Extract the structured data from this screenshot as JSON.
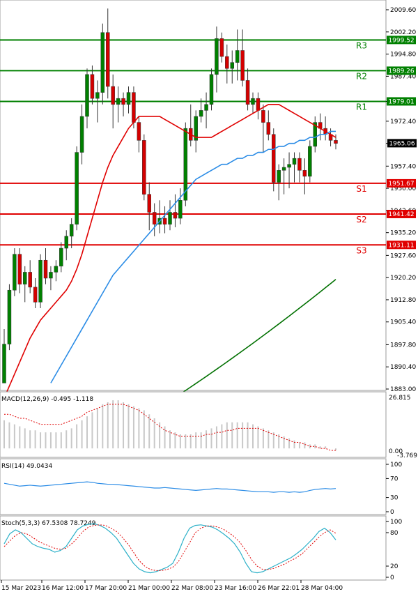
{
  "colors": {
    "bull": "#008000",
    "bear": "#d40000",
    "sma_fast": "#e00000",
    "sma_mid": "#2b8ce6",
    "sma_slow": "#007000",
    "resistance": "#008000",
    "support": "#e00000",
    "macd_hist": "#c8c8c8",
    "macd_signal": "#e00000",
    "rsi_line": "#2b8ce6",
    "stoch_k": "#2bb0c8",
    "stoch_d": "#e00000"
  },
  "chart_data": {
    "type": "candlestick",
    "instrument_price": "1965.06",
    "x_tick_labels": [
      "15 Mar 2023",
      "16 Mar 12:00",
      "17 Mar 20:00",
      "21 Mar 00:00",
      "22 Mar 08:00",
      "23 Mar 16:00",
      "26 Mar 22:01",
      "28 Mar 04:00"
    ],
    "y_ticks": [
      "2009.60",
      "2002.20",
      "1994.80",
      "1987.40",
      "1979.00",
      "1972.40",
      "1965.00",
      "1957.40",
      "1950.00",
      "1942.60",
      "1935.20",
      "1927.60",
      "1920.20",
      "1912.80",
      "1905.40",
      "1897.80",
      "1890.40",
      "1883.00"
    ],
    "ylim": [
      1883.0,
      2011.5
    ],
    "levels": [
      {
        "name": "R3",
        "value": 1999.52,
        "label": "1999.52",
        "kind": "resistance"
      },
      {
        "name": "R2",
        "value": 1989.26,
        "label": "1989.26",
        "kind": "resistance"
      },
      {
        "name": "R1",
        "value": 1979.01,
        "label": "1979.01",
        "kind": "resistance"
      },
      {
        "name": "S1",
        "value": 1951.67,
        "label": "1951.67",
        "kind": "support"
      },
      {
        "name": "S2",
        "value": 1941.42,
        "label": "1941.42",
        "kind": "support"
      },
      {
        "name": "S3",
        "value": 1931.11,
        "label": "1931.11",
        "kind": "support"
      }
    ],
    "candles": [
      [
        1885,
        1903,
        1886,
        1898
      ],
      [
        1898,
        1918,
        1896,
        1916
      ],
      [
        1916,
        1930,
        1914,
        1928
      ],
      [
        1928,
        1930,
        1915,
        1918
      ],
      [
        1918,
        1924,
        1912,
        1922
      ],
      [
        1922,
        1926,
        1915,
        1917
      ],
      [
        1917,
        1920,
        1910,
        1912
      ],
      [
        1912,
        1928,
        1910,
        1926
      ],
      [
        1926,
        1930,
        1918,
        1920
      ],
      [
        1920,
        1924,
        1916,
        1922
      ],
      [
        1922,
        1926,
        1919,
        1924
      ],
      [
        1924,
        1932,
        1922,
        1930
      ],
      [
        1930,
        1936,
        1926,
        1934
      ],
      [
        1934,
        1940,
        1930,
        1938
      ],
      [
        1938,
        1964,
        1936,
        1962
      ],
      [
        1962,
        1978,
        1958,
        1974
      ],
      [
        1974,
        1990,
        1970,
        1988
      ],
      [
        1988,
        1991,
        1978,
        1980
      ],
      [
        1980,
        1986,
        1972,
        1982
      ],
      [
        1982,
        2005,
        1978,
        2002
      ],
      [
        2002,
        2010,
        1980,
        1984
      ],
      [
        1984,
        1988,
        1970,
        1978
      ],
      [
        1978,
        1984,
        1972,
        1980
      ],
      [
        1980,
        1982,
        1974,
        1978
      ],
      [
        1978,
        1984,
        1975,
        1982
      ],
      [
        1982,
        1984,
        1970,
        1972
      ],
      [
        1972,
        1974,
        1962,
        1966
      ],
      [
        1966,
        1968,
        1946,
        1948
      ],
      [
        1948,
        1952,
        1936,
        1942
      ],
      [
        1942,
        1945,
        1934,
        1938
      ],
      [
        1938,
        1946,
        1935,
        1940
      ],
      [
        1940,
        1944,
        1935,
        1938
      ],
      [
        1938,
        1946,
        1936,
        1942
      ],
      [
        1942,
        1948,
        1937,
        1940
      ],
      [
        1940,
        1950,
        1938,
        1946
      ],
      [
        1946,
        1972,
        1944,
        1970
      ],
      [
        1970,
        1978,
        1964,
        1966
      ],
      [
        1966,
        1976,
        1962,
        1974
      ],
      [
        1974,
        1980,
        1972,
        1976
      ],
      [
        1976,
        1982,
        1970,
        1978
      ],
      [
        1978,
        1990,
        1976,
        1988
      ],
      [
        1988,
        2004,
        1982,
        2000
      ],
      [
        2000,
        2002,
        1992,
        1994
      ],
      [
        1994,
        1998,
        1985,
        1990
      ],
      [
        1990,
        1996,
        1985,
        1992
      ],
      [
        1992,
        2003,
        1986,
        1996
      ],
      [
        1996,
        2003,
        1984,
        1986
      ],
      [
        1986,
        1990,
        1976,
        1978
      ],
      [
        1978,
        1982,
        1975,
        1980
      ],
      [
        1980,
        1982,
        1973,
        1976
      ],
      [
        1976,
        1978,
        1962,
        1972
      ],
      [
        1972,
        1976,
        1966,
        1968
      ],
      [
        1968,
        1970,
        1949,
        1952
      ],
      [
        1952,
        1958,
        1946,
        1956
      ],
      [
        1956,
        1960,
        1948,
        1957
      ],
      [
        1957,
        1962,
        1950,
        1958
      ],
      [
        1958,
        1962,
        1952,
        1960
      ],
      [
        1960,
        1962,
        1952,
        1956
      ],
      [
        1956,
        1960,
        1948,
        1954
      ],
      [
        1954,
        1966,
        1952,
        1964
      ],
      [
        1964,
        1974,
        1962,
        1972
      ],
      [
        1972,
        1975,
        1966,
        1970
      ],
      [
        1970,
        1974,
        1966,
        1968
      ],
      [
        1968,
        1970,
        1964,
        1966
      ],
      [
        1966,
        1968,
        1963,
        1965
      ]
    ],
    "sma_fast": [
      1880,
      1884,
      1888,
      1892,
      1896,
      1900,
      1903,
      1906,
      1908,
      1910,
      1912,
      1914,
      1916,
      1919,
      1923,
      1928,
      1934,
      1940,
      1946,
      1952,
      1957,
      1961,
      1964,
      1967,
      1970,
      1972,
      1974,
      1974,
      1974,
      1974,
      1974,
      1973,
      1972,
      1971,
      1970,
      1969,
      1968,
      1967,
      1967,
      1967,
      1967,
      1968,
      1969,
      1970,
      1971,
      1972,
      1973,
      1974,
      1975,
      1976,
      1977,
      1978,
      1978,
      1978,
      1977,
      1976,
      1975,
      1974,
      1973,
      1972,
      1971,
      1970,
      1969,
      1968,
      1967
    ],
    "sma_mid": [
      1858,
      1861,
      1864,
      1867,
      1870,
      1873,
      1876,
      1879,
      1882,
      1885,
      1888,
      1891,
      1894,
      1897,
      1900,
      1903,
      1906,
      1909,
      1912,
      1915,
      1918,
      1921,
      1923,
      1925,
      1927,
      1929,
      1931,
      1933,
      1935,
      1937,
      1939,
      1941,
      1943,
      1945,
      1947,
      1949,
      1951,
      1953,
      1954,
      1955,
      1956,
      1957,
      1958,
      1958,
      1959,
      1960,
      1960,
      1961,
      1961,
      1962,
      1962,
      1963,
      1963,
      1964,
      1964,
      1965,
      1965,
      1966,
      1966,
      1967,
      1967,
      1968,
      1968,
      1969,
      1969
    ],
    "sma_slow_start": 1880.2,
    "sma_slow_end": 1919.6,
    "sma_slow_start_index": 33,
    "panels": {
      "macd": {
        "label": "MACD(12,26,9) -0.495 -1.118",
        "y_top_label": "26.815",
        "y_zero_label": "0.00",
        "y_bottom_label": "-3.769",
        "ylim": [
          -3.769,
          26.815
        ],
        "histogram": [
          14,
          13,
          12,
          11,
          10,
          9,
          9,
          8,
          8,
          8,
          8,
          8,
          9,
          10,
          12,
          14,
          16,
          18,
          20,
          22,
          23,
          24,
          24,
          23,
          22,
          21,
          20,
          19,
          17,
          15,
          13,
          11,
          9,
          8,
          7,
          7,
          7,
          8,
          8,
          9,
          10,
          11,
          12,
          13,
          13,
          13,
          13,
          13,
          12,
          11,
          10,
          9,
          8,
          7,
          6,
          5,
          4,
          3,
          3,
          2,
          2,
          1,
          1,
          0,
          -1
        ],
        "signal": [
          17,
          17,
          16,
          15,
          15,
          14,
          13,
          12,
          12,
          12,
          12,
          12,
          13,
          14,
          15,
          16,
          18,
          19,
          20,
          21,
          22,
          22,
          22,
          22,
          21,
          20,
          19,
          17,
          15,
          13,
          11,
          9,
          8,
          7,
          6,
          6,
          6,
          6,
          6,
          7,
          7,
          8,
          8,
          9,
          9,
          10,
          10,
          10,
          10,
          10,
          9,
          8,
          7,
          6,
          5,
          4,
          3,
          3,
          2,
          1,
          1,
          0,
          0,
          -1,
          -1
        ]
      },
      "rsi": {
        "label": "RSI(14) 49.0434",
        "ticks": [
          "100",
          "70",
          "30",
          "0"
        ],
        "tick_values": [
          100,
          70,
          30,
          0
        ],
        "values": [
          60,
          58,
          56,
          54,
          55,
          56,
          55,
          54,
          55,
          56,
          57,
          58,
          59,
          60,
          61,
          62,
          63,
          62,
          60,
          59,
          58,
          58,
          57,
          56,
          55,
          54,
          53,
          52,
          51,
          50,
          50,
          51,
          50,
          49,
          48,
          47,
          46,
          45,
          46,
          47,
          48,
          49,
          48,
          48,
          47,
          46,
          45,
          44,
          43,
          42,
          42,
          42,
          41,
          42,
          42,
          41,
          42,
          41,
          42,
          45,
          47,
          48,
          49,
          48,
          49
        ]
      },
      "stoch": {
        "label": "Stoch(5,3,3) 67.5308 78.7249",
        "ticks": [
          "100",
          "80",
          "20",
          "0"
        ],
        "tick_values": [
          100,
          80,
          20,
          0
        ],
        "k": [
          60,
          78,
          85,
          80,
          70,
          60,
          55,
          52,
          50,
          45,
          48,
          55,
          70,
          85,
          92,
          95,
          96,
          93,
          88,
          80,
          70,
          55,
          40,
          25,
          15,
          10,
          8,
          10,
          14,
          18,
          25,
          45,
          70,
          88,
          93,
          94,
          92,
          90,
          85,
          78,
          70,
          60,
          45,
          25,
          10,
          8,
          10,
          15,
          20,
          25,
          30,
          35,
          42,
          50,
          60,
          70,
          82,
          88,
          80,
          67
        ],
        "d": [
          55,
          65,
          75,
          80,
          78,
          72,
          65,
          60,
          56,
          52,
          50,
          52,
          60,
          70,
          82,
          90,
          93,
          94,
          93,
          88,
          82,
          72,
          60,
          45,
          30,
          20,
          14,
          12,
          12,
          14,
          18,
          28,
          45,
          62,
          80,
          88,
          92,
          92,
          90,
          86,
          80,
          72,
          62,
          48,
          32,
          20,
          14,
          14,
          16,
          20,
          24,
          30,
          35,
          42,
          52,
          62,
          72,
          80,
          85,
          79
        ]
      }
    }
  }
}
